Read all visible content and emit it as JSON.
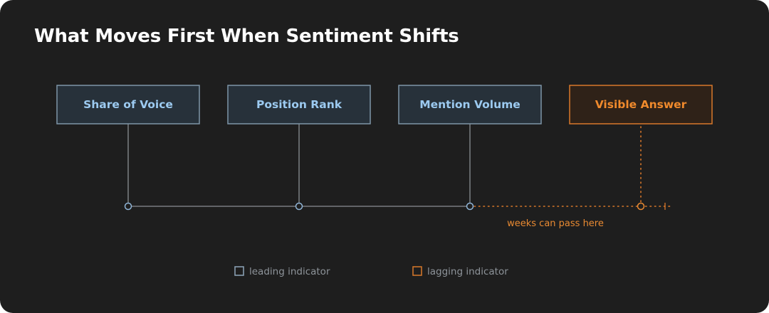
{
  "title": "What Moves First When Sentiment Shifts",
  "nodes": [
    {
      "label": "Share of Voice",
      "kind": "leading"
    },
    {
      "label": "Position Rank",
      "kind": "leading"
    },
    {
      "label": "Mention Volume",
      "kind": "leading"
    },
    {
      "label": "Visible Answer",
      "kind": "lagging"
    }
  ],
  "gap_note": "weeks can pass here",
  "legend": {
    "leading": "leading indicator",
    "lagging": "lagging indicator"
  },
  "colors": {
    "background": "#1e1e1e",
    "leading_accent": "#9ccaf0",
    "lagging_accent": "#f08a2c",
    "connector": "#8a8f94"
  }
}
